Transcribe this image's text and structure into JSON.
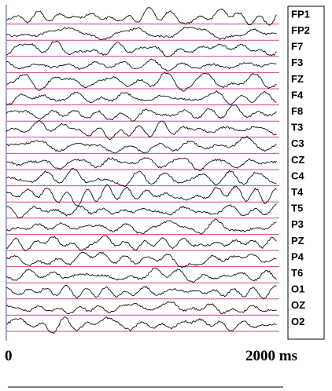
{
  "channels": [
    "FP1",
    "FP2",
    "F7",
    "F3",
    "FZ",
    "F4",
    "F8",
    "T3",
    "C3",
    "CZ",
    "C4",
    "T4",
    "T5",
    "P3",
    "PZ",
    "P4",
    "T6",
    "O1",
    "OZ",
    "O2"
  ],
  "x_axis": {
    "start": "0",
    "end": "2000 ms"
  }
}
